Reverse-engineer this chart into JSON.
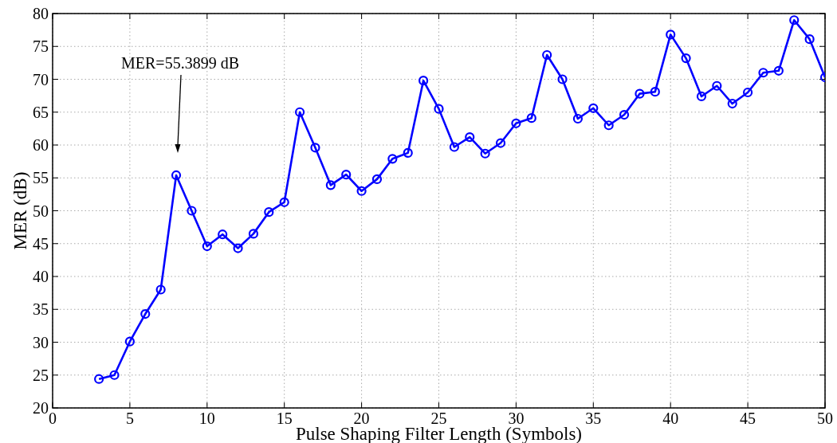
{
  "chart_data": {
    "type": "line",
    "xlabel": "Pulse Shaping Filter Length (Symbols)",
    "ylabel": "MER (dB)",
    "x": [
      3,
      4,
      5,
      6,
      7,
      8,
      9,
      10,
      11,
      12,
      13,
      14,
      15,
      16,
      17,
      18,
      19,
      20,
      21,
      22,
      23,
      24,
      25,
      26,
      27,
      28,
      29,
      30,
      31,
      32,
      33,
      34,
      35,
      36,
      37,
      38,
      39,
      40,
      41,
      42,
      43,
      44,
      45,
      46,
      47,
      48,
      49,
      50
    ],
    "series": [
      {
        "color": "#0000ff",
        "values": [
          24.4,
          25.0,
          30.1,
          34.3,
          38.0,
          55.4,
          50.0,
          44.6,
          46.4,
          44.3,
          46.5,
          49.8,
          51.3,
          65.0,
          59.6,
          53.9,
          55.5,
          53.0,
          54.8,
          57.9,
          58.8,
          69.8,
          65.5,
          59.7,
          61.2,
          58.7,
          60.3,
          63.3,
          64.1,
          73.7,
          70.0,
          64.0,
          65.6,
          63.0,
          64.6,
          67.8,
          68.1,
          76.8,
          73.2,
          67.4,
          69.0,
          66.3,
          68.0,
          71.0,
          71.3,
          79.0,
          76.1,
          70.3
        ]
      }
    ],
    "xlim": [
      0,
      50
    ],
    "xticks": [
      0,
      5,
      10,
      15,
      20,
      25,
      30,
      35,
      40,
      45,
      50
    ],
    "ylim": [
      20,
      80
    ],
    "yticks": [
      20,
      25,
      30,
      35,
      40,
      45,
      50,
      55,
      60,
      65,
      70,
      75,
      80
    ],
    "grid": true,
    "marker": "circle",
    "line_style": "solid",
    "annotations": [
      "MER=55.3899 dB"
    ]
  }
}
